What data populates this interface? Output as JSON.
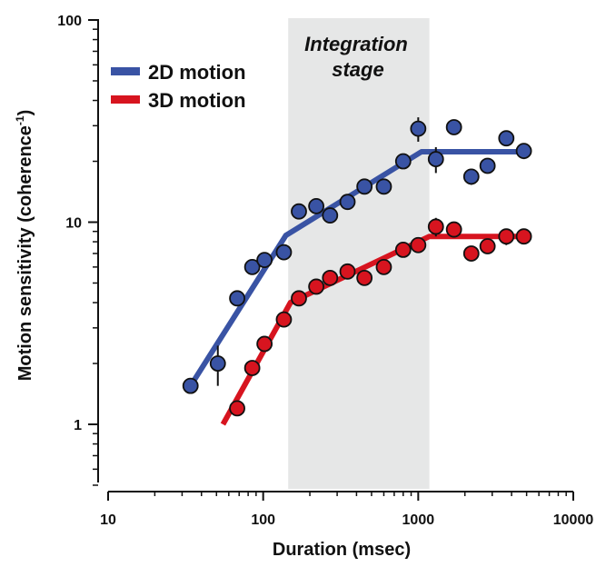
{
  "colors": {
    "series_2d": "#3953a4",
    "series_3d": "#d7141f",
    "band": "#e6e7e7",
    "axis": "#111111"
  },
  "chart_data": {
    "type": "scatter",
    "xlabel": "Duration (msec)",
    "ylabel": "Motion sensitivity (coherence",
    "ylabel_superscript": "-1",
    "ylabel_close": ")",
    "xscale": "log",
    "yscale": "log",
    "xlim": [
      10,
      10000
    ],
    "ylim": [
      0.5,
      100
    ],
    "xticks": [
      10,
      100,
      1000,
      10000
    ],
    "xtick_labels": [
      "10",
      "100",
      "1000",
      "10000"
    ],
    "yticks": [
      1,
      10,
      100
    ],
    "ytick_labels": [
      "1",
      "10",
      "100"
    ],
    "legend_position": "top-left",
    "annotation": {
      "lines": [
        "Integration",
        "stage"
      ],
      "band_x": [
        145,
        1180
      ]
    },
    "series": [
      {
        "name": "2D motion",
        "color": "#3953a4",
        "points": [
          {
            "x": 34,
            "y": 1.55,
            "err": 0
          },
          {
            "x": 51,
            "y": 2.0,
            "err": 0.45
          },
          {
            "x": 68,
            "y": 4.2,
            "err": 0
          },
          {
            "x": 85,
            "y": 6.0,
            "err": 0
          },
          {
            "x": 102,
            "y": 6.5,
            "err": 0
          },
          {
            "x": 136,
            "y": 7.1,
            "err": 0
          },
          {
            "x": 170,
            "y": 11.3,
            "err": 0
          },
          {
            "x": 220,
            "y": 12.0,
            "err": 0
          },
          {
            "x": 270,
            "y": 10.8,
            "err": 0
          },
          {
            "x": 350,
            "y": 12.6,
            "err": 0
          },
          {
            "x": 450,
            "y": 15.0,
            "err": 0
          },
          {
            "x": 600,
            "y": 15.0,
            "err": 0
          },
          {
            "x": 800,
            "y": 20.0,
            "err": 0
          },
          {
            "x": 1000,
            "y": 29.0,
            "err": 4.0
          },
          {
            "x": 1300,
            "y": 20.5,
            "err": 3.0
          },
          {
            "x": 1700,
            "y": 29.5,
            "err": 0
          },
          {
            "x": 2200,
            "y": 16.8,
            "err": 1.5
          },
          {
            "x": 2800,
            "y": 19.0,
            "err": 0
          },
          {
            "x": 3700,
            "y": 26.0,
            "err": 0
          },
          {
            "x": 4800,
            "y": 22.5,
            "err": 2.0
          }
        ],
        "fit": [
          [
            34,
            1.55
          ],
          [
            140,
            8.6
          ],
          [
            1050,
            22.3
          ],
          [
            4900,
            22.3
          ]
        ]
      },
      {
        "name": "3D motion",
        "color": "#d7141f",
        "points": [
          {
            "x": 68,
            "y": 1.2,
            "err": 0.1
          },
          {
            "x": 85,
            "y": 1.9,
            "err": 0
          },
          {
            "x": 102,
            "y": 2.5,
            "err": 0
          },
          {
            "x": 136,
            "y": 3.3,
            "err": 0
          },
          {
            "x": 170,
            "y": 4.2,
            "err": 0
          },
          {
            "x": 220,
            "y": 4.8,
            "err": 0
          },
          {
            "x": 270,
            "y": 5.3,
            "err": 0
          },
          {
            "x": 350,
            "y": 5.7,
            "err": 0
          },
          {
            "x": 450,
            "y": 5.3,
            "err": 0
          },
          {
            "x": 600,
            "y": 6.0,
            "err": 0
          },
          {
            "x": 800,
            "y": 7.3,
            "err": 0
          },
          {
            "x": 1000,
            "y": 7.7,
            "err": 0
          },
          {
            "x": 1300,
            "y": 9.5,
            "err": 1.0
          },
          {
            "x": 1700,
            "y": 9.2,
            "err": 0.8
          },
          {
            "x": 2200,
            "y": 7.0,
            "err": 0.6
          },
          {
            "x": 2800,
            "y": 7.6,
            "err": 0
          },
          {
            "x": 3700,
            "y": 8.5,
            "err": 0.8
          },
          {
            "x": 4800,
            "y": 8.5,
            "err": 0
          }
        ],
        "fit": [
          [
            55,
            1.0
          ],
          [
            150,
            4.0
          ],
          [
            1180,
            8.5
          ],
          [
            4900,
            8.5
          ]
        ]
      }
    ]
  }
}
